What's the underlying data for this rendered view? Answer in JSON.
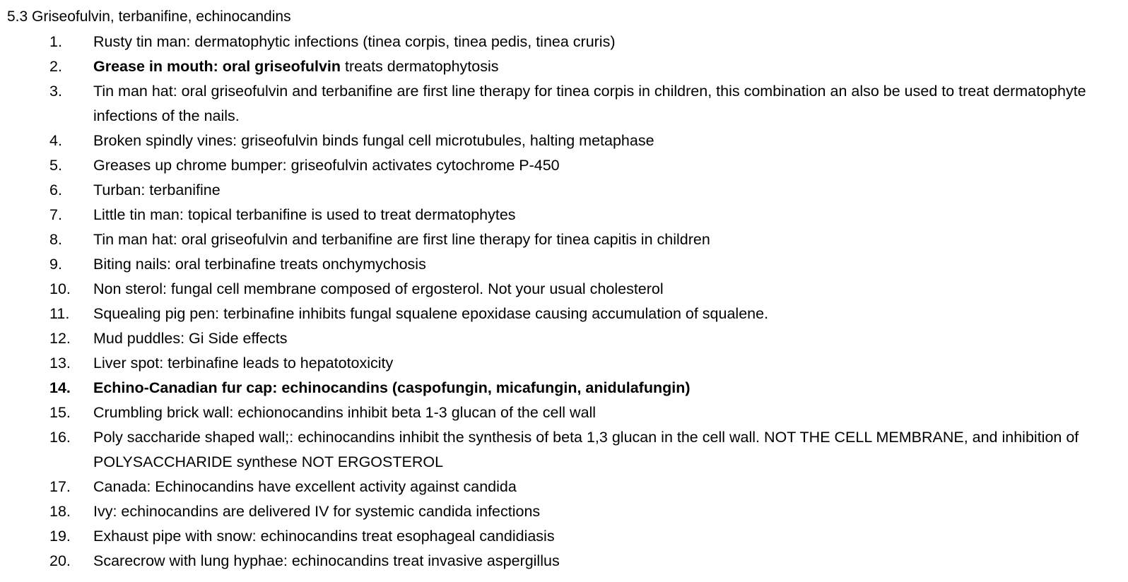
{
  "document": {
    "heading": "5.3 Griseofulvin, terbanifine, echinocandins",
    "items": [
      {
        "num": "1.",
        "text": "Rusty tin man: dermatophytic infections (tinea corpis, tinea pedis, tinea cruris)"
      },
      {
        "num": "2.",
        "bold": "Grease in mouth: oral griseofulvin",
        "text": " treats dermatophytosis"
      },
      {
        "num": "3.",
        "text": "Tin man hat: oral griseofulvin and terbanifine are first line therapy for tinea corpis in children, this combination an also be used to treat dermatophyte infections of the nails."
      },
      {
        "num": "4.",
        "text": "Broken spindly vines: griseofulvin binds fungal cell microtubules, halting metaphase"
      },
      {
        "num": "5.",
        "text": "Greases up chrome bumper: griseofulvin activates cytochrome P-450"
      },
      {
        "num": "6.",
        "text": "Turban: terbanifine"
      },
      {
        "num": "7.",
        "text": "Little tin man: topical terbanifine is used to treat dermatophytes"
      },
      {
        "num": "8.",
        "text": "Tin man hat: oral griseofulvin and terbanifine are first line therapy for tinea capitis in children"
      },
      {
        "num": "9.",
        "text": "Biting nails: oral terbinafine treats onchymychosis"
      },
      {
        "num": "10.",
        "text": "Non sterol: fungal cell membrane composed of ergosterol. Not your usual cholesterol"
      },
      {
        "num": "11.",
        "text": "Squealing pig pen: terbinafine inhibits fungal squalene epoxidase causing accumulation of squalene."
      },
      {
        "num": "12.",
        "text": "Mud puddles: Gi Side effects"
      },
      {
        "num": "13.",
        "text": "Liver spot: terbinafine leads to hepatotoxicity"
      },
      {
        "num": "14.",
        "text": "Echino-Canadian fur cap: echinocandins (caspofungin, micafungin, anidulafungin)"
      },
      {
        "num": "15.",
        "text": "Crumbling brick wall: echionocandins inhibit beta 1-3 glucan of the cell wall"
      },
      {
        "num": "16.",
        "text": "Poly saccharide shaped wall;: echinocandins inhibit the synthesis of beta 1,3 glucan in the cell wall. NOT THE CELL MEMBRANE, and inhibition of POLYSACCHARIDE synthese NOT ERGOSTEROL"
      },
      {
        "num": "17.",
        "text": "Canada: Echinocandins have excellent activity against candida"
      },
      {
        "num": "18.",
        "text": "Ivy: echinocandins are delivered IV for systemic candida infections"
      },
      {
        "num": "19.",
        "text": "Exhaust pipe with snow: echinocandins treat esophageal candidiasis"
      },
      {
        "num": "20.",
        "text": "Scarecrow with lung hyphae: echinocandins treat invasive aspergillus"
      }
    ]
  }
}
